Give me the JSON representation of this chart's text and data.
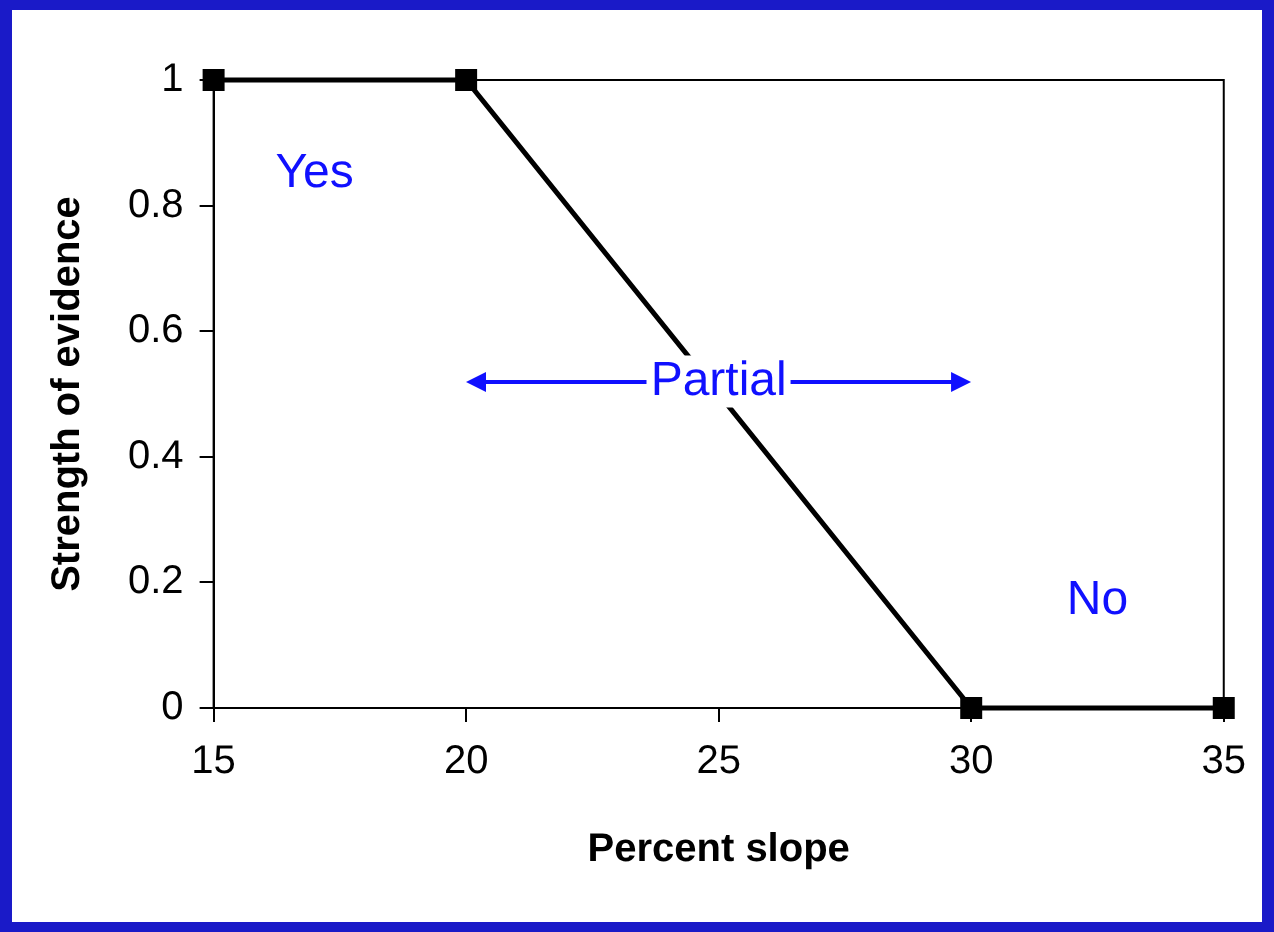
{
  "chart_data": {
    "type": "line",
    "xlabel": "Percent slope",
    "ylabel": "Strength of evidence",
    "x": [
      15,
      20,
      30,
      35
    ],
    "series": [
      {
        "color": "#000000",
        "values": [
          1,
          1,
          0,
          0
        ]
      }
    ],
    "xlim": [
      15,
      35
    ],
    "xticks": [
      15,
      20,
      25,
      30,
      35
    ],
    "ylim": [
      0,
      1
    ],
    "yticks": [
      0,
      0.2,
      0.4,
      0.6,
      0.8,
      1
    ],
    "grid": false,
    "legend": false,
    "marker": "square",
    "line_style": "solid",
    "annotations": [
      "Yes",
      "Partial",
      "No"
    ]
  }
}
